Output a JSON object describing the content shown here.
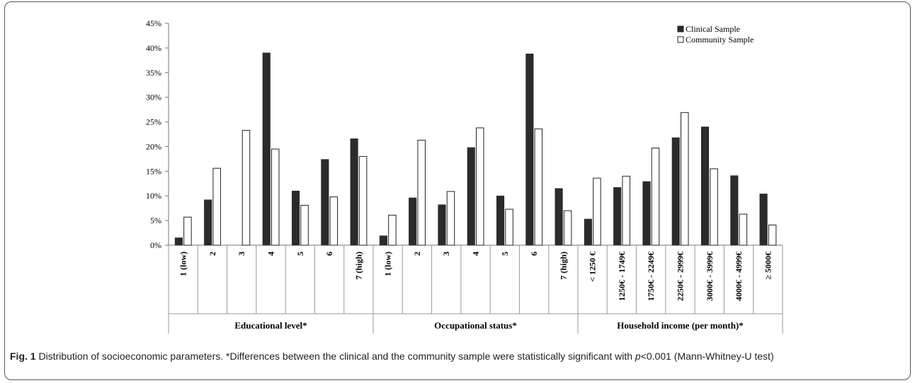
{
  "chart_data": {
    "type": "bar",
    "y_ticks": [
      "0%",
      "5%",
      "10%",
      "15%",
      "20%",
      "25%",
      "30%",
      "35%",
      "40%",
      "45%"
    ],
    "ylim": [
      0,
      45
    ],
    "legend": {
      "position": "top-right"
    },
    "series": [
      {
        "name": "Clinical Sample",
        "color": "#2b2b2b",
        "values": [
          1.5,
          9.2,
          0,
          39.0,
          11.0,
          17.4,
          21.6,
          1.9,
          9.6,
          8.2,
          19.8,
          10.0,
          38.8,
          11.5,
          5.3,
          11.7,
          12.9,
          21.8,
          24.0,
          14.1,
          10.4
        ]
      },
      {
        "name": "Community Sample",
        "color": "#ffffff",
        "values": [
          5.7,
          15.6,
          23.3,
          19.5,
          8.1,
          9.8,
          18.0,
          6.1,
          21.3,
          10.9,
          23.8,
          7.3,
          23.6,
          7.0,
          13.6,
          14.0,
          19.7,
          26.9,
          15.5,
          6.3,
          4.1
        ]
      }
    ],
    "categories": [
      "1 (low)",
      "2",
      "3",
      "4",
      "5",
      "6",
      "7 (high)",
      "1 (low)",
      "2",
      "3",
      "4",
      "5",
      "6",
      "7 (high)",
      "< 1250 €",
      "1250€ - 1749€",
      "1750€ - 2249€",
      "2250€ - 2999€",
      "3000€ - 3999€",
      "4000€ - 4999€",
      "≥ 5000€"
    ],
    "groups": [
      {
        "label": "Educational level*",
        "start": 0,
        "end": 7
      },
      {
        "label": "Occupational status*",
        "start": 7,
        "end": 14
      },
      {
        "label": "Household income (per month)*",
        "start": 14,
        "end": 21
      }
    ]
  },
  "caption": {
    "fig_label": "Fig. 1",
    "text_1": " Distribution of socioeconomic parameters. *Differences between the clinical and the community sample were statistically significant with ",
    "p_symbol": "p",
    "text_2": "<0.001 (Mann-Whitney-U test)"
  }
}
